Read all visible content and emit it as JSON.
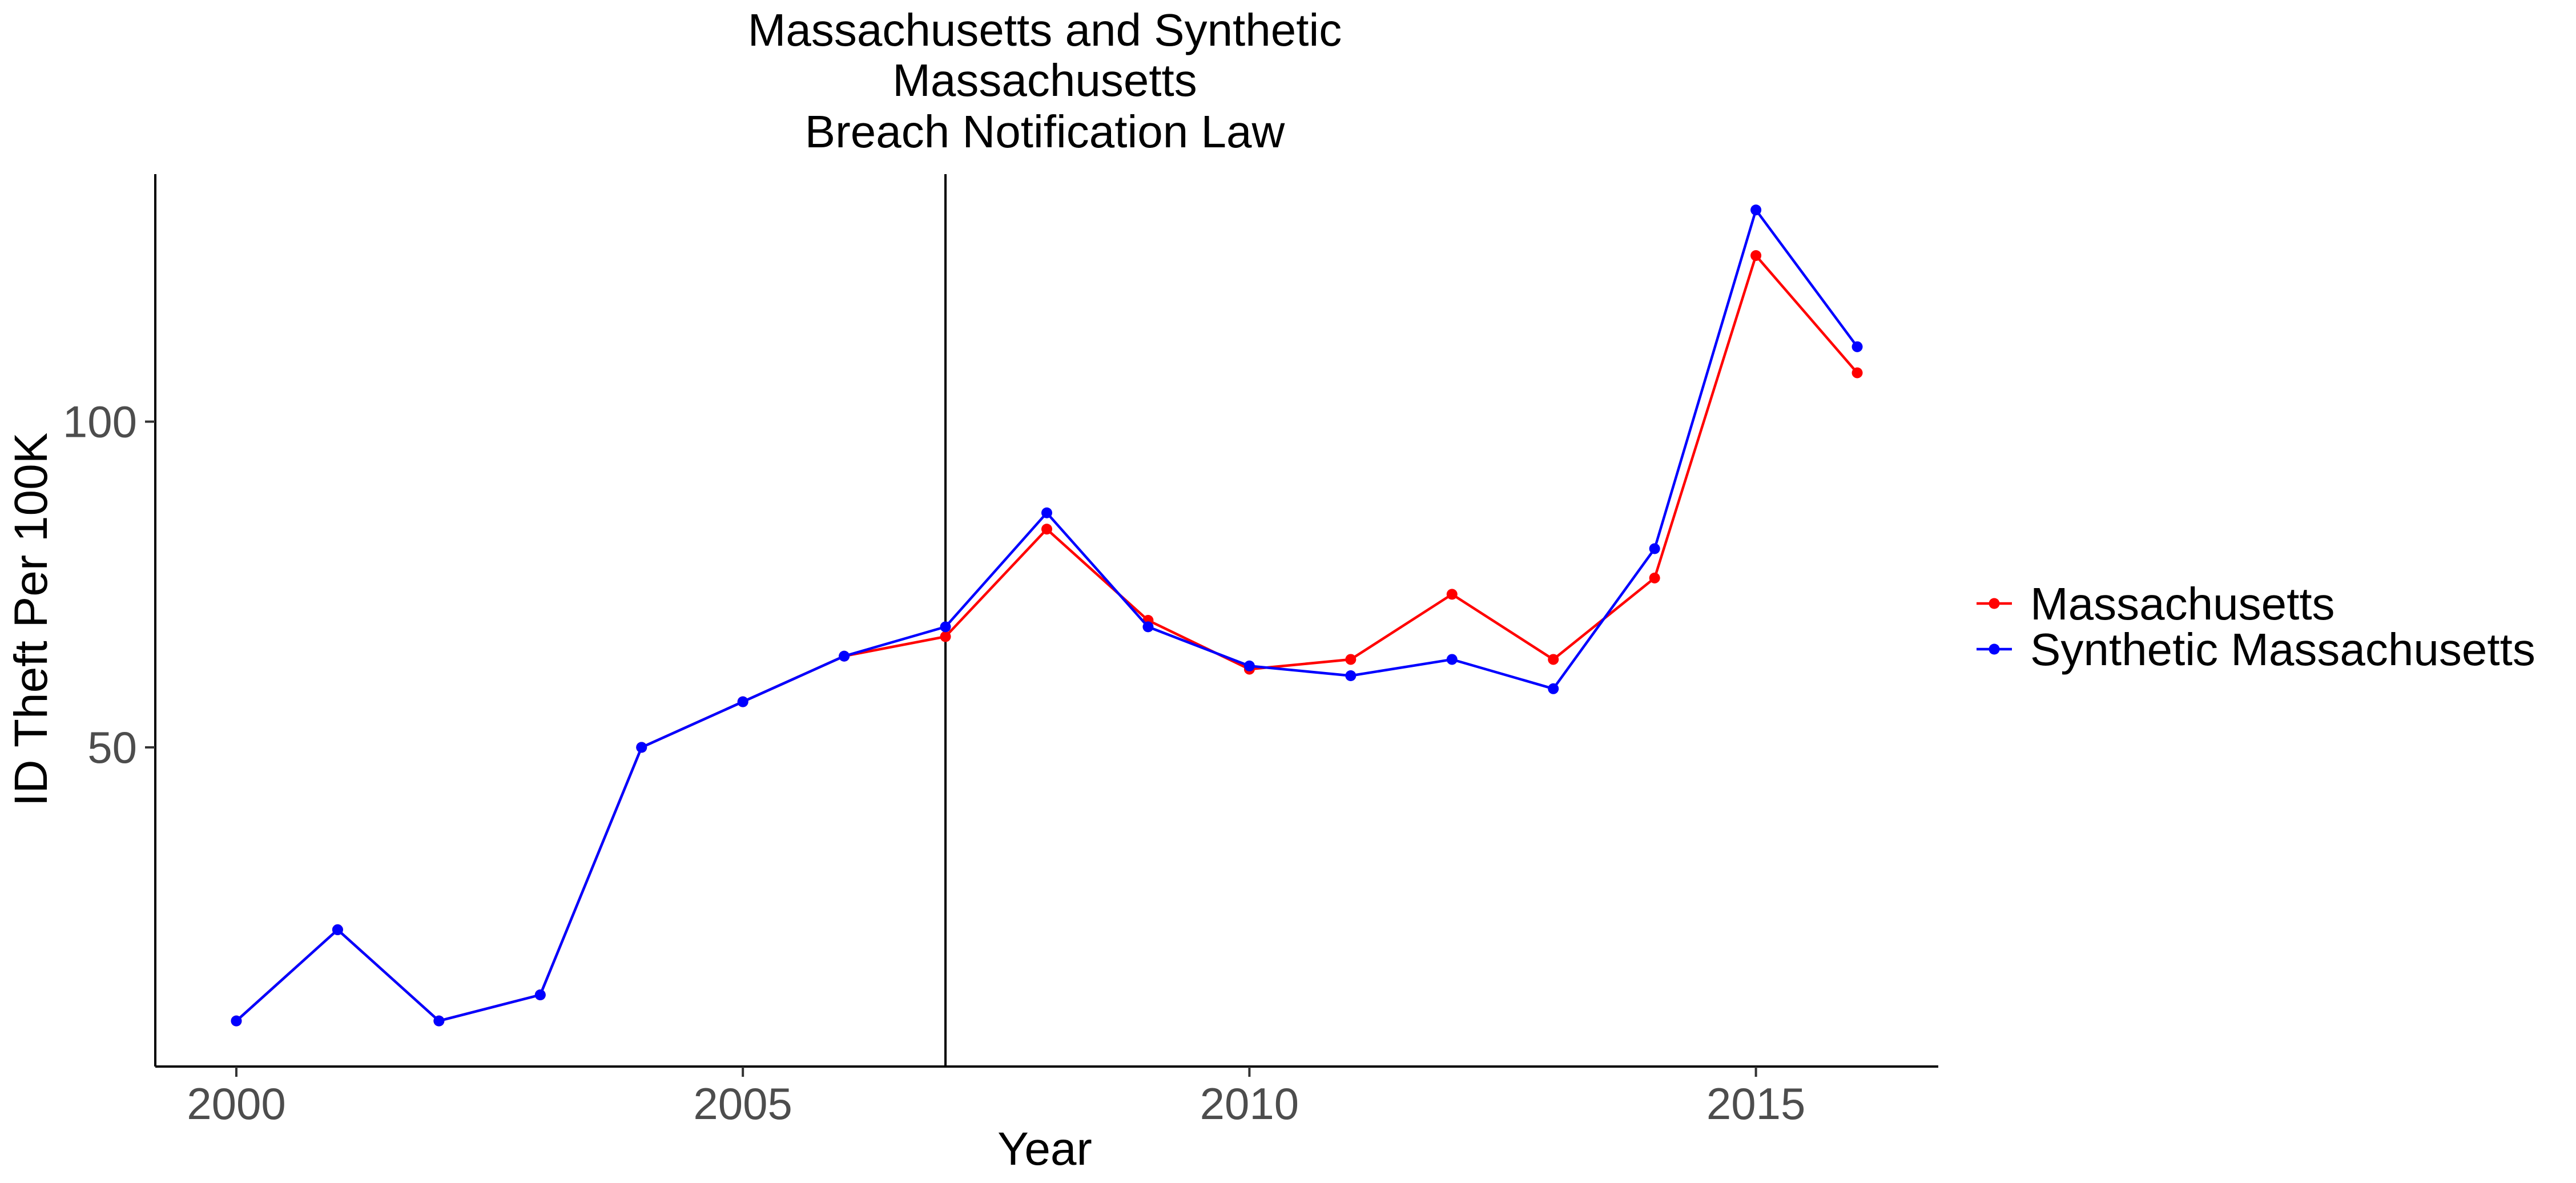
{
  "chart_data": {
    "type": "line",
    "title": [
      "Massachusetts and Synthetic",
      "Massachusetts",
      "Breach Notification Law"
    ],
    "xlabel": "Year",
    "ylabel": "ID Theft Per 100K",
    "xlim": [
      1999.2,
      2016.8
    ],
    "ylim": [
      1,
      138
    ],
    "x_ticks": [
      2000,
      2005,
      2010,
      2015
    ],
    "y_ticks": [
      50,
      100
    ],
    "vline_x": 2007,
    "grid": false,
    "legend_position": "right",
    "series": [
      {
        "name": "Massachusetts",
        "color": "#ff0000",
        "x": [
          2000,
          2001,
          2002,
          2003,
          2004,
          2005,
          2006,
          2007,
          2008,
          2009,
          2010,
          2011,
          2012,
          2013,
          2014,
          2015,
          2016
        ],
        "y": [
          8,
          22,
          8,
          12,
          50,
          57,
          64,
          67,
          83.5,
          69.5,
          62,
          63.5,
          73.5,
          63.5,
          76,
          125.5,
          107.5
        ]
      },
      {
        "name": "Synthetic Massachusetts",
        "color": "#0000ff",
        "x": [
          2000,
          2001,
          2002,
          2003,
          2004,
          2005,
          2006,
          2007,
          2008,
          2009,
          2010,
          2011,
          2012,
          2013,
          2014,
          2015,
          2016
        ],
        "y": [
          8,
          22,
          8,
          12,
          50,
          57,
          64,
          68.5,
          86,
          68.5,
          62.5,
          61,
          63.5,
          59,
          80.5,
          132.5,
          111.5
        ]
      }
    ]
  }
}
